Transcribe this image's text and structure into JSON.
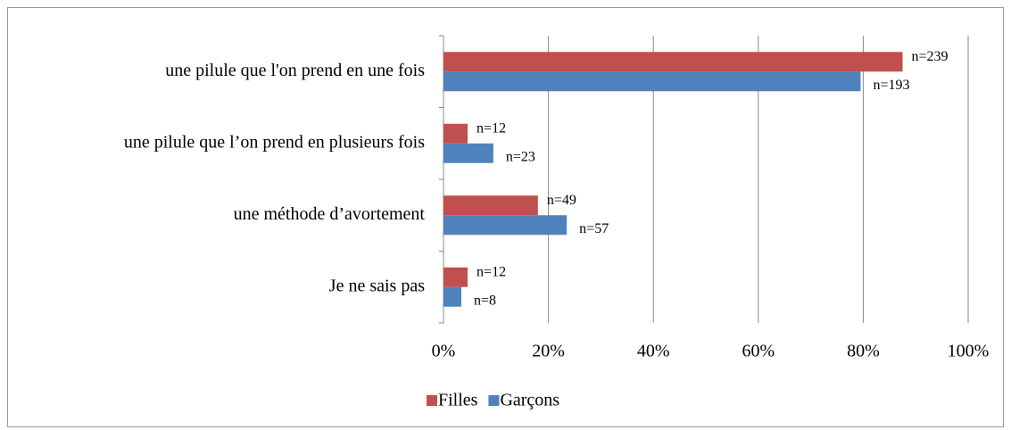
{
  "chart_data": {
    "type": "hbar",
    "categories": [
      "une pilule que l'on prend en une fois",
      "une pilule que l’on prend en plusieurs fois",
      "une méthode d’avortement",
      "Je ne sais pas"
    ],
    "series": [
      {
        "name": "Filles",
        "color": "#c0504d",
        "values": [
          87.5,
          4.6,
          18,
          4.6
        ],
        "labels": [
          "n=239",
          "n=12",
          "n=49",
          "n=12"
        ]
      },
      {
        "name": "Garçons",
        "color": "#4f81bd",
        "values": [
          79.5,
          9.5,
          23.5,
          3.4
        ],
        "labels": [
          "n=193",
          "n=23",
          "n=57",
          "n=8"
        ]
      }
    ],
    "xlim": [
      0,
      100
    ],
    "xticks": [
      {
        "value": 0,
        "label": "0%"
      },
      {
        "value": 20,
        "label": "20%"
      },
      {
        "value": 40,
        "label": "40%"
      },
      {
        "value": 60,
        "label": "60%"
      },
      {
        "value": 80,
        "label": "80%"
      },
      {
        "value": 100,
        "label": "100%"
      }
    ],
    "grid": true,
    "legend": "bottom"
  }
}
